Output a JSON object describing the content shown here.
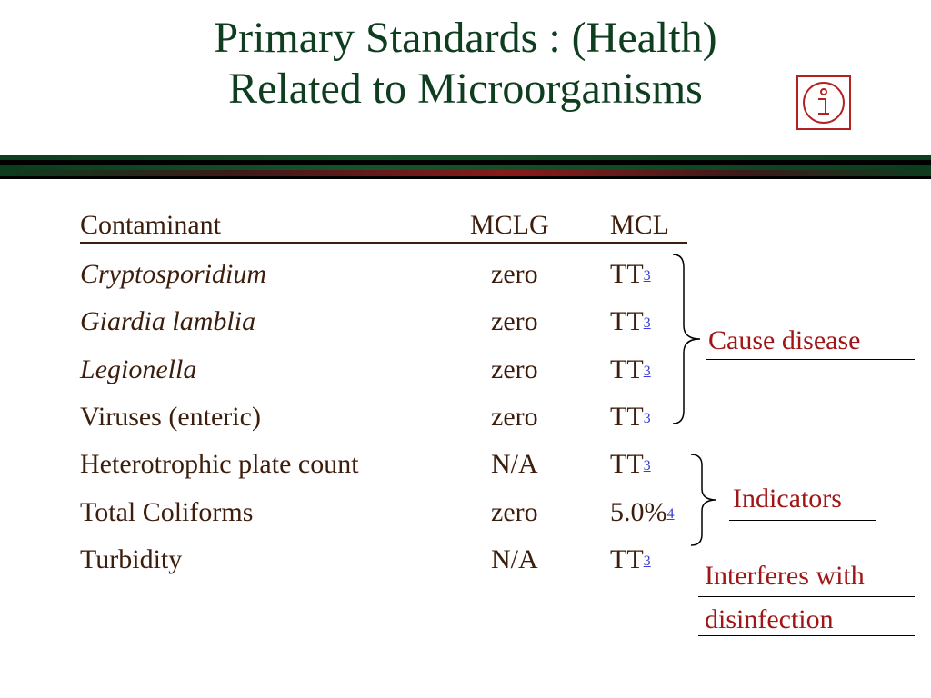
{
  "slide": {
    "title_line1": "Primary Standards : (Health)",
    "title_line2": "Related to Microorganisms",
    "info_icon": "circled-i-icon"
  },
  "table": {
    "headers": {
      "contaminant": "Contaminant",
      "mclg": "MCLG",
      "mcl": "MCL"
    },
    "rows": [
      {
        "contaminant": "Cryptosporidium",
        "mclg": "zero",
        "mcl": "TT",
        "footnote": "3",
        "italic": true
      },
      {
        "contaminant": "Giardia lamblia",
        "mclg": "zero",
        "mcl": "TT",
        "footnote": "3",
        "italic": true
      },
      {
        "contaminant": "Legionella",
        "mclg": "zero",
        "mcl": "TT",
        "footnote": "3",
        "italic": true
      },
      {
        "contaminant": "Viruses (enteric)",
        "mclg": "zero",
        "mcl": "TT",
        "footnote": "3",
        "italic": false
      },
      {
        "contaminant": "Heterotrophic plate count",
        "mclg": "N/A",
        "mcl": "TT",
        "footnote": "3",
        "italic": false
      },
      {
        "contaminant": "Total Coliforms",
        "mclg": "zero",
        "mcl": "5.0%",
        "footnote": "4",
        "italic": false
      },
      {
        "contaminant": "Turbidity",
        "mclg": "N/A",
        "mcl": "TT",
        "footnote": "3",
        "italic": false
      }
    ]
  },
  "notes": {
    "cause_disease": "Cause disease",
    "indicators": "Indicators",
    "interferes_line1": "Interferes with",
    "interferes_line2": "disinfection"
  },
  "colors": {
    "title": "#0f3d1f",
    "body_text": "#3d1e0c",
    "note_text": "#a01515",
    "footnote_link": "#3a3ad6"
  }
}
